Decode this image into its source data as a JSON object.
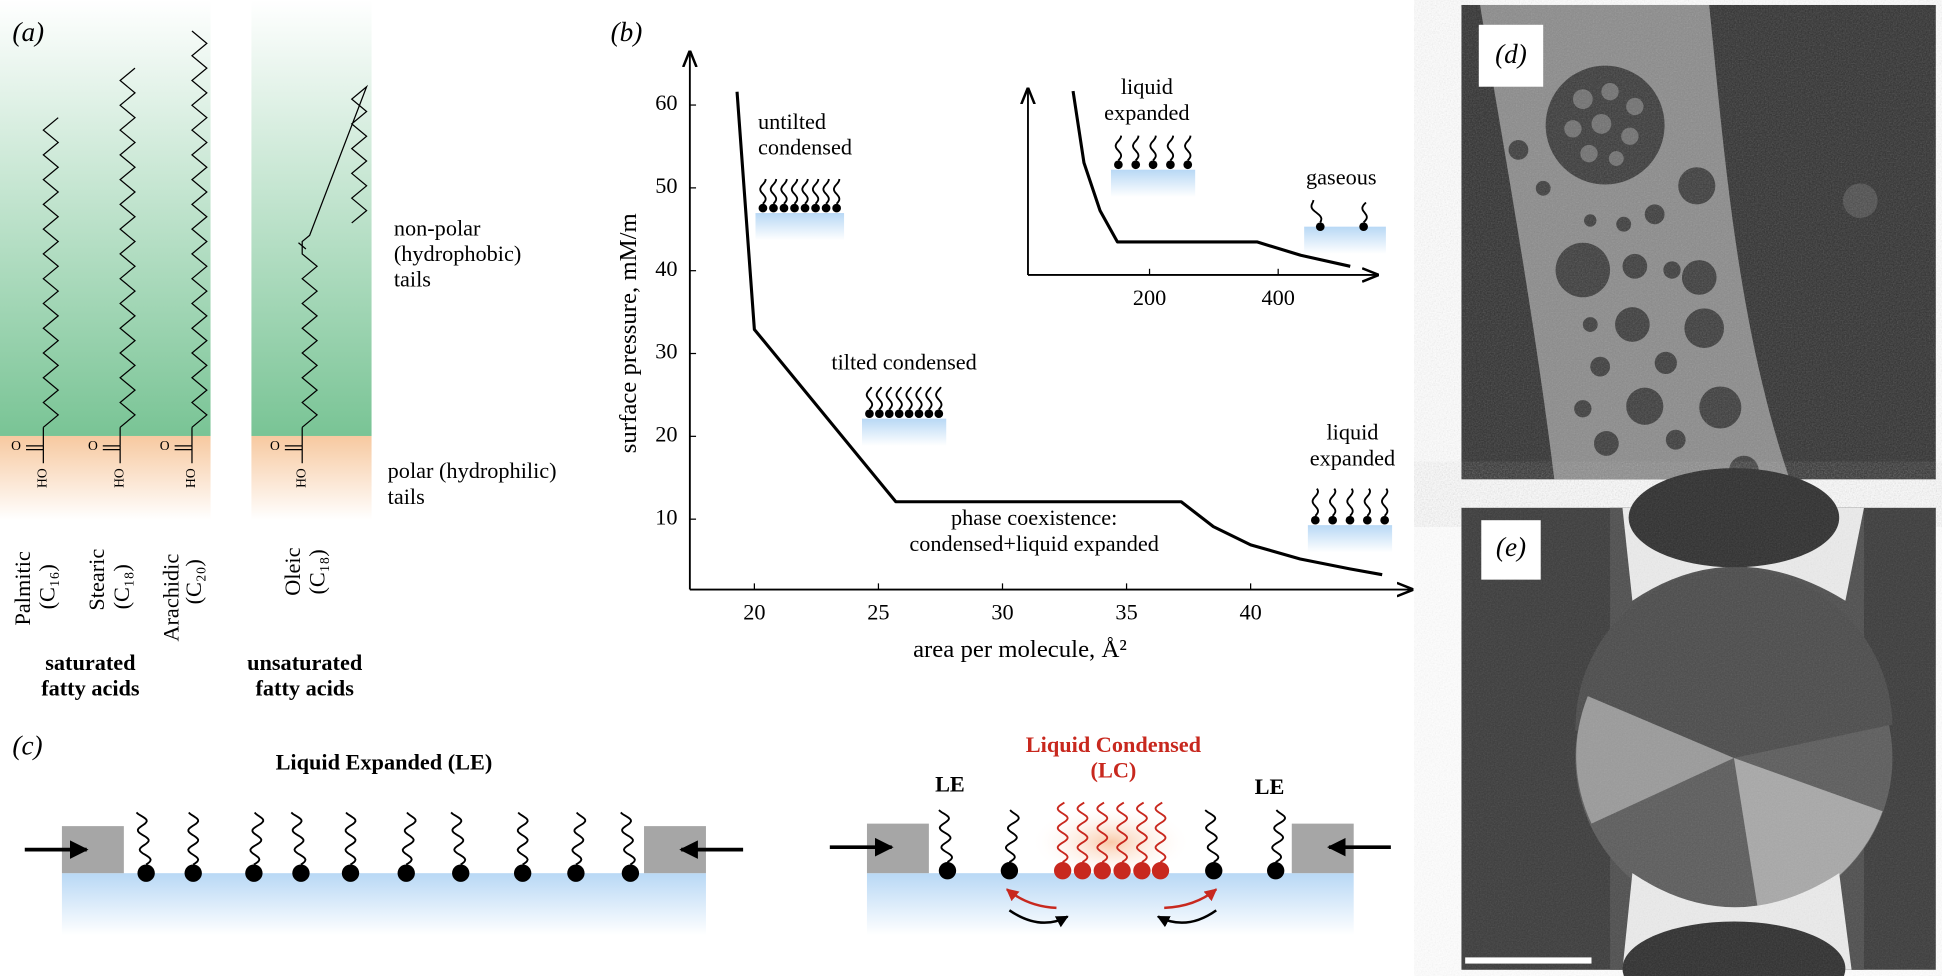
{
  "chart_data": [
    {
      "type": "line",
      "xlabel": "area per molecule, Å²",
      "ylabel": "surface pressure, mM/m",
      "x": [
        19.3,
        20,
        25.7,
        37.2,
        38.5,
        40,
        42,
        44,
        45.3
      ],
      "series": [
        {
          "color": "#000000",
          "values": [
            61.6,
            32.9,
            12.1,
            12.1,
            9.1,
            6.9,
            5.2,
            4.0,
            3.3
          ]
        }
      ],
      "xlim": [
        17.4,
        46.5
      ],
      "ylim": [
        1.5,
        66.4
      ],
      "xticks": [
        20,
        25,
        30,
        35,
        40
      ],
      "yticks": [
        10,
        20,
        30,
        40,
        50,
        60
      ],
      "annotations": [
        "untilted\ncondensed",
        "tilted condensed",
        "phase coexistence:\ncondensed+liquid expanded",
        "liquid\nexpanded"
      ]
    },
    {
      "type": "line",
      "x": [
        81,
        98,
        123,
        150,
        367,
        435,
        512
      ],
      "series": [
        {
          "color": "#000000",
          "values": [
            10,
            6.1,
            3.5,
            1.8,
            1.8,
            1.07,
            0.47
          ]
        }
      ],
      "xlim": [
        11,
        554
      ],
      "ylim": [
        0,
        10.1
      ],
      "xticks": [
        200,
        400
      ],
      "annotations": [
        "liquid\nexpanded",
        "gaseous"
      ]
    }
  ],
  "panel_letters": [
    "(a)",
    "(b)",
    "(c)",
    "(d)",
    "(e)"
  ],
  "panel_a": {
    "nonpolar": "non-polar\n(hydrophobic)\ntails",
    "polar": "polar (hydrophilic)\ntails",
    "oxygen": "O",
    "hydroxyl": "HO",
    "acids": [
      {
        "name": "Palmitic",
        "formula": "(C₁₆)"
      },
      {
        "name": "Stearic",
        "formula": "(C₁₈)"
      },
      {
        "name": "Arachidic",
        "formula": "(C₂₀)"
      },
      {
        "name": "Oleic",
        "formula": "(C₁₈)"
      }
    ],
    "saturated": "saturated\nfatty acids",
    "unsaturated": "unsaturated\nfatty acids"
  },
  "panel_c": {
    "le_title": "Liquid Expanded (LE)",
    "lc_title": "Liquid Condensed\n(LC)",
    "le_label": "LE"
  }
}
